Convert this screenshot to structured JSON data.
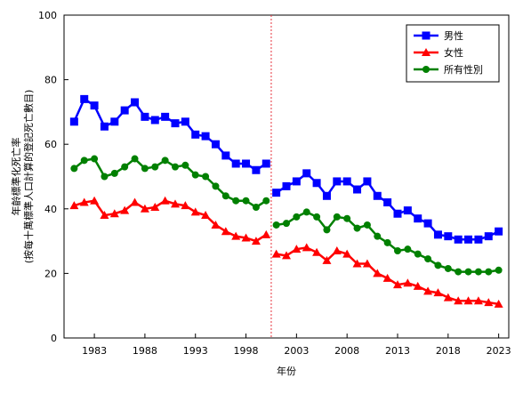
{
  "chart_data": {
    "type": "line",
    "title": "",
    "xlabel": "年份",
    "ylabel": [
      "年齡標準化死亡率",
      "(按每十萬標準人口計算的登記死亡數目)"
    ],
    "ylim": [
      0,
      100
    ],
    "yticks": [
      0,
      20,
      40,
      60,
      80,
      100
    ],
    "xticks": [
      1983,
      1988,
      1993,
      1998,
      2003,
      2008,
      2013,
      2018,
      2023
    ],
    "xlim": [
      1980,
      2024
    ],
    "grid": false,
    "legend_position": "top-right",
    "divider_between": [
      2000,
      2001
    ],
    "divider_color": "#e8323c",
    "series": [
      {
        "name": "男性",
        "color": "#0000ff",
        "marker": "square",
        "segments": [
          {
            "x": [
              1981,
              1982,
              1983,
              1984,
              1985,
              1986,
              1987,
              1988,
              1989,
              1990,
              1991,
              1992,
              1993,
              1994,
              1995,
              1996,
              1997,
              1998,
              1999,
              2000
            ],
            "values": [
              67,
              74,
              72,
              65.5,
              67,
              70.5,
              73,
              68.5,
              67.5,
              68.5,
              66.5,
              67,
              63,
              62.5,
              60,
              56.5,
              54,
              54,
              52,
              54
            ]
          },
          {
            "x": [
              2001,
              2002,
              2003,
              2004,
              2005,
              2006,
              2007,
              2008,
              2009,
              2010,
              2011,
              2012,
              2013,
              2014,
              2015,
              2016,
              2017,
              2018,
              2019,
              2020,
              2021,
              2022,
              2023
            ],
            "values": [
              45,
              47,
              48.5,
              51,
              48,
              44,
              48.5,
              48.5,
              46,
              48.5,
              44,
              42,
              38.5,
              39.5,
              37,
              35.5,
              32,
              31.5,
              30.5,
              30.5,
              30.5,
              31.5,
              33
            ]
          }
        ]
      },
      {
        "name": "女性",
        "color": "#ff0000",
        "marker": "triangle",
        "segments": [
          {
            "x": [
              1981,
              1982,
              1983,
              1984,
              1985,
              1986,
              1987,
              1988,
              1989,
              1990,
              1991,
              1992,
              1993,
              1994,
              1995,
              1996,
              1997,
              1998,
              1999,
              2000
            ],
            "values": [
              41,
              42,
              42.5,
              38,
              38.5,
              39.5,
              42,
              40,
              40.5,
              42.5,
              41.5,
              41,
              39,
              38,
              35,
              33,
              31.5,
              31,
              30,
              32
            ]
          },
          {
            "x": [
              2001,
              2002,
              2003,
              2004,
              2005,
              2006,
              2007,
              2008,
              2009,
              2010,
              2011,
              2012,
              2013,
              2014,
              2015,
              2016,
              2017,
              2018,
              2019,
              2020,
              2021,
              2022,
              2023
            ],
            "values": [
              26,
              25.5,
              27.5,
              28,
              26.5,
              24,
              27,
              26,
              23,
              23,
              20,
              18.5,
              16.5,
              17,
              16,
              14.5,
              14,
              12.5,
              11.5,
              11.5,
              11.5,
              11,
              10.5
            ]
          }
        ]
      },
      {
        "name": "所有性別",
        "color": "#008000",
        "marker": "circle",
        "segments": [
          {
            "x": [
              1981,
              1982,
              1983,
              1984,
              1985,
              1986,
              1987,
              1988,
              1989,
              1990,
              1991,
              1992,
              1993,
              1994,
              1995,
              1996,
              1997,
              1998,
              1999,
              2000
            ],
            "values": [
              52.5,
              55,
              55.5,
              50,
              51,
              53,
              55.5,
              52.5,
              53,
              55,
              53,
              53.5,
              50.5,
              50,
              47,
              44,
              42.5,
              42.5,
              40.5,
              42.5
            ]
          },
          {
            "x": [
              2001,
              2002,
              2003,
              2004,
              2005,
              2006,
              2007,
              2008,
              2009,
              2010,
              2011,
              2012,
              2013,
              2014,
              2015,
              2016,
              2017,
              2018,
              2019,
              2020,
              2021,
              2022,
              2023
            ],
            "values": [
              35,
              35.5,
              37.5,
              39,
              37.5,
              33.5,
              37.5,
              37,
              34,
              35,
              31.5,
              29.5,
              27,
              27.5,
              26,
              24.5,
              22.5,
              21.5,
              20.5,
              20.5,
              20.5,
              20.5,
              21
            ]
          }
        ]
      }
    ]
  }
}
